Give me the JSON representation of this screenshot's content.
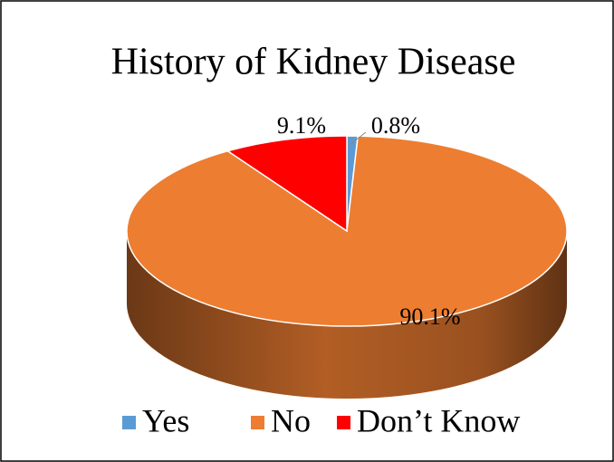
{
  "chart_data": {
    "type": "pie",
    "title": "History of Kidney Disease",
    "categories": [
      "Yes",
      "No",
      "Don’t Know"
    ],
    "values": [
      0.8,
      90.1,
      9.1
    ],
    "value_labels": [
      "0.8%",
      "90.1%",
      "9.1%"
    ],
    "colors": [
      "#5b9bd5",
      "#ed7d31",
      "#ff0000"
    ],
    "legend": "bottom"
  }
}
